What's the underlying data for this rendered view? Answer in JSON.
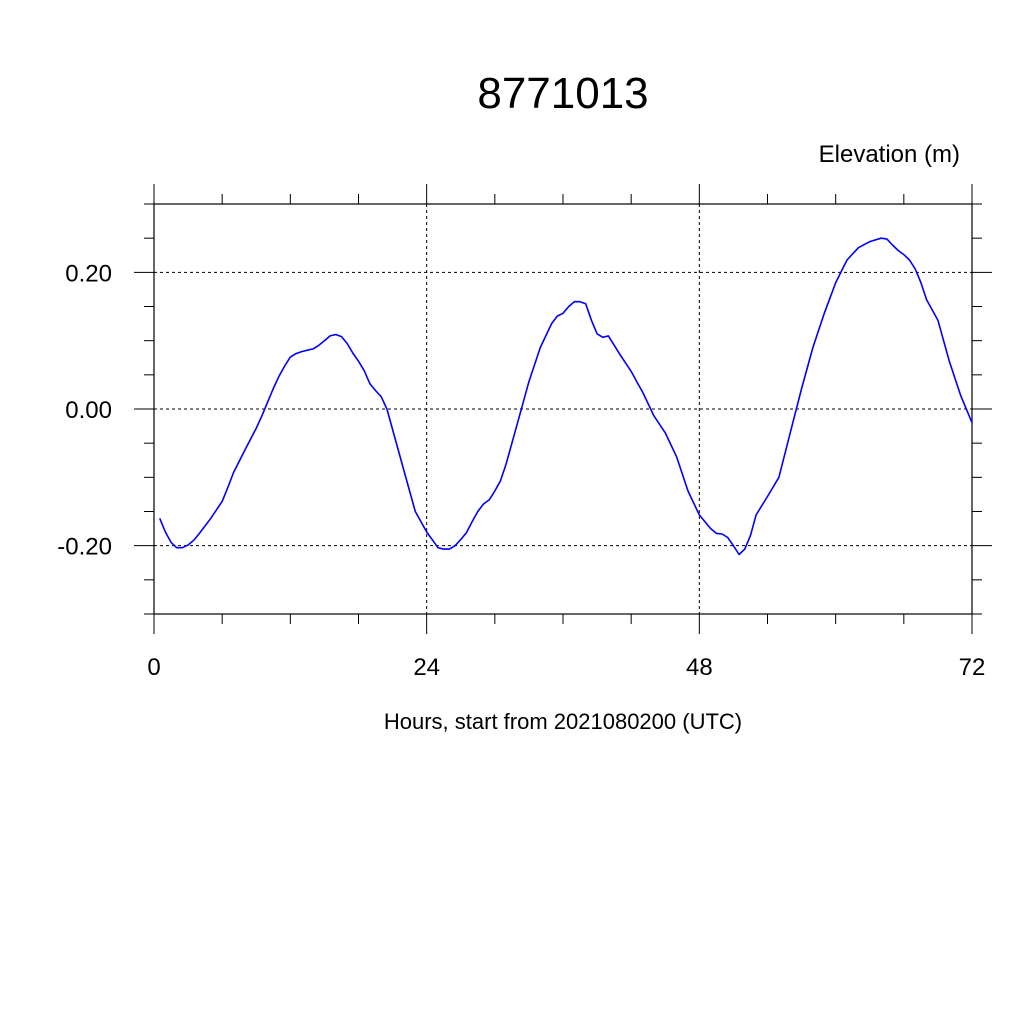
{
  "chart_data": {
    "type": "line",
    "title": "8771013",
    "ylabel": "Elevation (m)",
    "xlabel": "Hours, start from 2021080200 (UTC)",
    "xlim": [
      0,
      72
    ],
    "ylim": [
      -0.3,
      0.3
    ],
    "xticks": [
      0,
      24,
      48,
      72
    ],
    "xtick_labels": [
      "0",
      "24",
      "48",
      "72"
    ],
    "yticks": [
      -0.2,
      0.0,
      0.2
    ],
    "ytick_labels": [
      "-0.20",
      "0.00",
      "0.20"
    ],
    "grid": true,
    "grid_style": "dashed",
    "line_color": "#0000ff",
    "series": [
      {
        "x": [
          0.5,
          1,
          1.5,
          2,
          2.5,
          3,
          3.5,
          4,
          5,
          6,
          6.5,
          7,
          8,
          9,
          9.5,
          10,
          10.5,
          11,
          11.5,
          12,
          12.5,
          13,
          13.5,
          14,
          14.5,
          15,
          15.5,
          16,
          16.5,
          17,
          17.5,
          18,
          18.5,
          19,
          19.5,
          20,
          20.5,
          21,
          22,
          23,
          24,
          25,
          25.5,
          26,
          26.5,
          27,
          27.5,
          28,
          28.5,
          29,
          29.5,
          30,
          30.5,
          31,
          31.5,
          32,
          33,
          34,
          35,
          35.5,
          36,
          36.5,
          37,
          37.5,
          38,
          38.5,
          39,
          39.5,
          40,
          41,
          42,
          42.5,
          43,
          44,
          45,
          46,
          47,
          48,
          48.5,
          49,
          49.5,
          50,
          50.5,
          51,
          51.5,
          52,
          52.5,
          53,
          54,
          55,
          56,
          57,
          58,
          59,
          60,
          61,
          62,
          63,
          64,
          64.5,
          65,
          65.5,
          66,
          66.5,
          67,
          67.5,
          68,
          69,
          70,
          71,
          72
        ],
        "y": [
          -0.16,
          -0.18,
          -0.195,
          -0.203,
          -0.203,
          -0.199,
          -0.192,
          -0.182,
          -0.16,
          -0.135,
          -0.115,
          -0.093,
          -0.06,
          -0.028,
          -0.01,
          0.01,
          0.03,
          0.048,
          0.063,
          0.076,
          0.081,
          0.084,
          0.086,
          0.088,
          0.093,
          0.1,
          0.107,
          0.109,
          0.106,
          0.096,
          0.082,
          0.07,
          0.056,
          0.037,
          0.027,
          0.018,
          0.0,
          -0.03,
          -0.09,
          -0.15,
          -0.18,
          -0.203,
          -0.205,
          -0.205,
          -0.2,
          -0.191,
          -0.181,
          -0.165,
          -0.15,
          -0.139,
          -0.133,
          -0.12,
          -0.105,
          -0.08,
          -0.05,
          -0.02,
          0.04,
          0.09,
          0.125,
          0.136,
          0.14,
          0.15,
          0.157,
          0.157,
          0.154,
          0.13,
          0.11,
          0.105,
          0.107,
          0.08,
          0.055,
          0.04,
          0.025,
          -0.01,
          -0.035,
          -0.07,
          -0.12,
          -0.155,
          -0.165,
          -0.175,
          -0.182,
          -0.183,
          -0.188,
          -0.2,
          -0.213,
          -0.205,
          -0.185,
          -0.155,
          -0.128,
          -0.1,
          -0.035,
          0.03,
          0.09,
          0.14,
          0.185,
          0.218,
          0.236,
          0.245,
          0.25,
          0.249,
          0.24,
          0.232,
          0.226,
          0.218,
          0.205,
          0.185,
          0.16,
          0.13,
          0.07,
          0.02,
          -0.02
        ]
      }
    ]
  }
}
